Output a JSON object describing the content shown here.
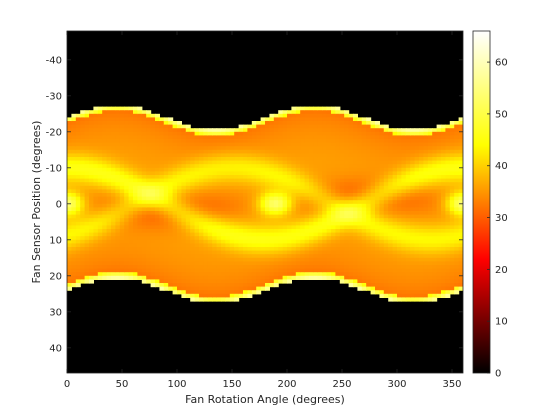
{
  "chart_data": {
    "type": "heatmap",
    "title": "",
    "xlabel": "Fan Rotation Angle (degrees)",
    "ylabel": "Fan Sensor Position (degrees)",
    "xlim": [
      0,
      360
    ],
    "ylim": [
      -48,
      47
    ],
    "y_reversed": true,
    "x_ticks": [
      0,
      50,
      100,
      150,
      200,
      250,
      300,
      350
    ],
    "y_ticks": [
      -40,
      -30,
      -20,
      -10,
      0,
      10,
      20,
      30,
      40
    ],
    "colormap": "hot",
    "colorbar": {
      "location": "right",
      "limits": [
        0,
        66
      ],
      "ticks": [
        0,
        10,
        20,
        30,
        40,
        50,
        60
      ]
    },
    "grid": false,
    "sinogram_band": {
      "description_free": true,
      "center_offset_amplitude": 3.5,
      "half_width": 24,
      "upper_edge_extremes": [
        -27,
        -20
      ],
      "lower_edge_extremes": [
        20,
        27
      ],
      "phase_period": 180
    },
    "colors": {
      "background": "#000000",
      "axis": "#262626"
    }
  }
}
